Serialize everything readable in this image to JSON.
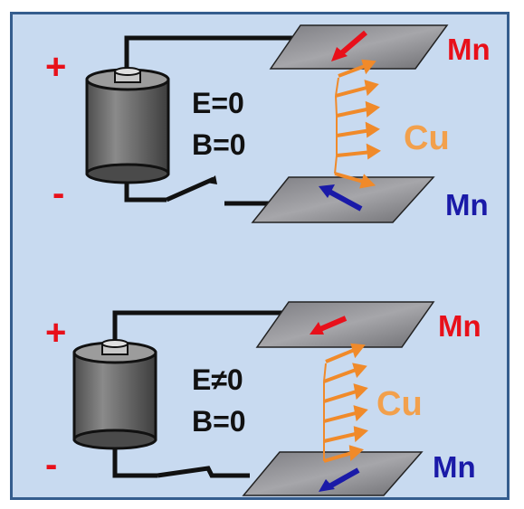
{
  "colors": {
    "background": "#c8daf0",
    "border": "#355d8e",
    "plate": "#8c8c90",
    "top_spin": "#e8101a",
    "bottom_spin": "#1a1aa8",
    "copper_spin": "#f08a2a",
    "wire": "#111111",
    "battery": "#6a6a6a"
  },
  "panels": [
    {
      "plus": "+",
      "minus": "-",
      "e_label": "E=0",
      "b_label": "B=0",
      "top_layer": "Mn",
      "middle_layer": "Cu",
      "bottom_layer": "Mn",
      "switch_state": "open"
    },
    {
      "plus": "+",
      "minus": "-",
      "e_label": "E≠0",
      "b_label": "B=0",
      "top_layer": "Mn",
      "middle_layer": "Cu",
      "bottom_layer": "Mn",
      "switch_state": "closed"
    }
  ]
}
